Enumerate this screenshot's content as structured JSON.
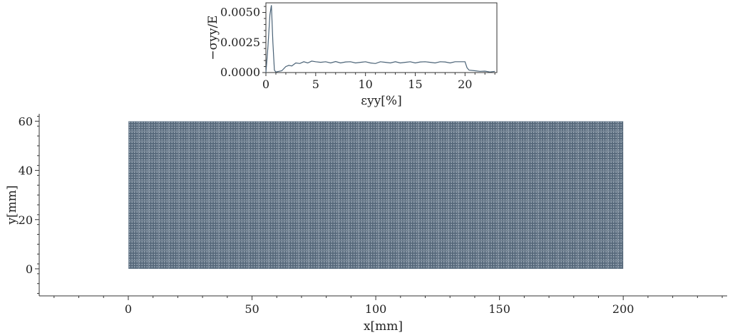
{
  "chart_data": [
    {
      "type": "line",
      "xlabel": "εyy[%]",
      "ylabel": "−σyy/E",
      "xlim": [
        0,
        23.2
      ],
      "ylim": [
        0,
        0.0058
      ],
      "xticks": [
        0,
        5,
        10,
        15,
        20
      ],
      "yticks": [
        0.0,
        0.0025,
        0.005
      ],
      "ytick_labels": [
        "0.0000",
        "0.0025",
        "0.0050"
      ],
      "line_color": "#4a6276",
      "series": [
        {
          "x": [
            0,
            0.2,
            0.4,
            0.55,
            0.7,
            0.85,
            1.0,
            1.3,
            1.6,
            2.0,
            2.3,
            2.6,
            3.0,
            3.4,
            3.8,
            4.2,
            4.6,
            5.0,
            5.5,
            6.0,
            6.5,
            7.0,
            7.5,
            8.0,
            8.5,
            9.0,
            9.5,
            10.0,
            10.5,
            11.0,
            11.5,
            12.0,
            12.5,
            13.0,
            13.5,
            14.0,
            14.5,
            15.0,
            15.5,
            16.0,
            16.5,
            17.0,
            17.5,
            18.0,
            18.5,
            19.0,
            19.5,
            20.0,
            20.2,
            20.4,
            21.0,
            21.5,
            22.0,
            22.5,
            23.0
          ],
          "y": [
            0,
            0.0021,
            0.0048,
            0.0056,
            0.0025,
            0.0002,
            5e-05,
            0.0001,
            0.00015,
            0.0005,
            0.0006,
            0.00055,
            0.0008,
            0.00075,
            0.0009,
            0.0008,
            0.00095,
            0.0009,
            0.00085,
            0.0009,
            0.0008,
            0.00092,
            0.0008,
            0.00088,
            0.0009,
            0.0008,
            0.00085,
            0.0009,
            0.0008,
            0.00075,
            0.0009,
            0.00085,
            0.0008,
            0.0009,
            0.0008,
            0.00085,
            0.0009,
            0.0008,
            0.00088,
            0.0009,
            0.00085,
            0.0008,
            0.0009,
            0.00088,
            0.0008,
            0.0009,
            0.0009,
            0.0009,
            0.0004,
            0.0002,
            0.00015,
            0.0001,
            0.00012,
            5e-05,
            0.0001
          ]
        }
      ]
    },
    {
      "type": "scatter",
      "xlabel": "x[mm]",
      "ylabel": "y[mm]",
      "xlim": [
        -36,
        242
      ],
      "ylim": [
        -11,
        63
      ],
      "xticks": [
        0,
        50,
        100,
        150,
        200
      ],
      "yticks": [
        0,
        20,
        40,
        60
      ],
      "domain_x": [
        0,
        200
      ],
      "domain_y": [
        0,
        60
      ],
      "fill_color": "#56687a",
      "dot_color": "#c9d4de"
    }
  ]
}
